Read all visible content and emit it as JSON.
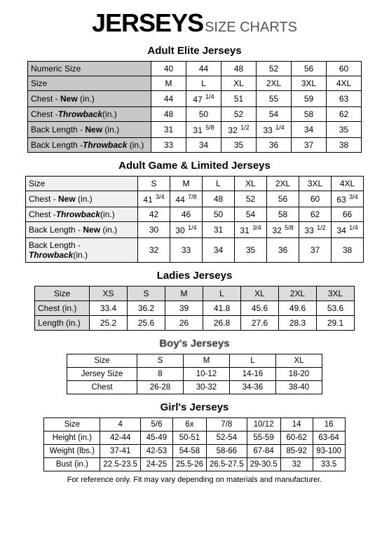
{
  "header": {
    "main": "JERSEYS",
    "sub": "SIZE CHARTS"
  },
  "footnote": "For reference only.  Fit may vary depending on materials and manufacturer.",
  "colors": {
    "label_bg": "#c8c8c8",
    "ladies_hdr_bg": "#dcdcdc",
    "border": "#000000",
    "bg": "#ffffff"
  },
  "adult_elite": {
    "title": "Adult Elite Jerseys",
    "rows": [
      {
        "label": "Numeric Size",
        "vals": [
          "40",
          "44",
          "48",
          "52",
          "56",
          "60"
        ]
      },
      {
        "label": "Size",
        "vals": [
          "M",
          "L",
          "XL",
          "2XL",
          "3XL",
          "4XL"
        ]
      },
      {
        "label_html": "Chest - <span class='new-txt'>New</span> (in.)",
        "vals": [
          "44",
          "47 <span class='frac'>1/4</span>",
          "51",
          "55",
          "59",
          "63"
        ]
      },
      {
        "label_html": "Chest -<span class='tb-txt'>Throwback</span>(in.)",
        "vals": [
          "48",
          "50",
          "52",
          "54",
          "58",
          "62"
        ]
      },
      {
        "label_html": "Back Length - <span class='new-txt'>New</span>  (in.)",
        "vals": [
          "31",
          "31 <span class='frac'>5/8</span>",
          "32 <span class='frac'>1/2</span>",
          "33 <span class='frac'>1/4</span>",
          "34",
          "35"
        ]
      },
      {
        "label_html": "Back Length -<span class='tb-txt'>Throwback</span> (in.)",
        "vals": [
          "33",
          "34",
          "35",
          "36",
          "37",
          "38"
        ]
      }
    ]
  },
  "adult_game": {
    "title": "Adult Game & Limited Jerseys",
    "rows": [
      {
        "label": "Size",
        "vals": [
          "S",
          "M",
          "L",
          "XL",
          "2XL",
          "3XL",
          "4XL"
        ]
      },
      {
        "label_html": "Chest - <span class='new-txt'>New</span> (in.)",
        "vals": [
          "41 <span class='frac'>3/4</span>",
          "44 <span class='frac'>7/8</span>",
          "48",
          "52",
          "56",
          "60",
          "63 <span class='frac'>3/4</span>"
        ]
      },
      {
        "label_html": "Chest -<span class='tb-txt'>Throwback</span>(in.)",
        "vals": [
          "42",
          "46",
          "50",
          "54",
          "58",
          "62",
          "66"
        ]
      },
      {
        "label_html": "Back Length - <span class='new-txt'>New</span>  (in.)",
        "vals": [
          "30",
          "30 <span class='frac'>1/4</span>",
          "31",
          "31 <span class='frac'>3/4</span>",
          "32 <span class='frac'>5/8</span>",
          "33 <span class='frac'>1/2</span>",
          "34 <span class='frac'>1/4</span>"
        ]
      },
      {
        "label_html": "Back Length -<span class='tb-txt'>Throwback</span>(in.)",
        "vals": [
          "32",
          "33",
          "34",
          "35",
          "36",
          "37",
          "38"
        ]
      }
    ]
  },
  "ladies": {
    "title": "Ladies Jerseys",
    "rows": [
      {
        "label": "Size",
        "vals": [
          "XS",
          "S",
          "M",
          "L",
          "XL",
          "2XL",
          "3XL"
        ],
        "header": true
      },
      {
        "label": "Chest (in.)",
        "vals": [
          "33.4",
          "36.2",
          "39",
          "41.8",
          "45.6",
          "49.6",
          "53.6"
        ]
      },
      {
        "label": "Length (in.)",
        "vals": [
          "25.2",
          "25.6",
          "26",
          "26.8",
          "27.6",
          "28.3",
          "29.1"
        ]
      }
    ]
  },
  "boys": {
    "title": "Boy's Jerseys",
    "rows": [
      {
        "label": "Size",
        "vals": [
          "S",
          "M",
          "L",
          "XL"
        ]
      },
      {
        "label": "Jersey Size",
        "vals": [
          "8",
          "10-12",
          "14-16",
          "18-20"
        ]
      },
      {
        "label": "Chest",
        "vals": [
          "26-28",
          "30-32",
          "34-36",
          "38-40"
        ]
      }
    ]
  },
  "girls": {
    "title": "Girl's Jerseys",
    "rows": [
      {
        "label": "Size",
        "vals": [
          "4",
          "5/6",
          "6x",
          "7/8",
          "10/12",
          "14",
          "16"
        ]
      },
      {
        "label": "Height (in.)",
        "vals": [
          "42-44",
          "45-49",
          "50-51",
          "52-54",
          "55-59",
          "60-62",
          "63-64"
        ]
      },
      {
        "label": "Weight (lbs.)",
        "vals": [
          "37-41",
          "42-53",
          "54-58",
          "58-66",
          "67-84",
          "85-92",
          "93-100"
        ]
      },
      {
        "label": "Bust (in.)",
        "vals": [
          "22.5-23.5",
          "24-25",
          "25.5-26",
          "26.5-27.5",
          "29-30.5",
          "32",
          "33.5"
        ]
      }
    ]
  }
}
